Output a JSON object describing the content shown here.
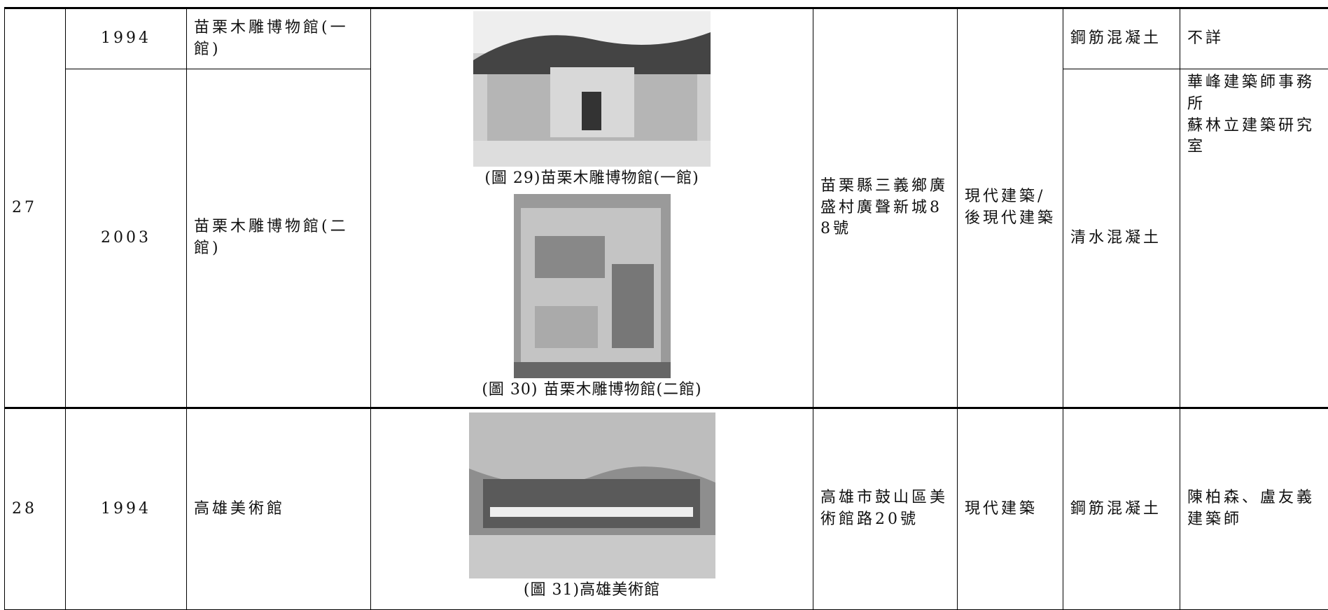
{
  "table": {
    "rows": [
      {
        "number": "27",
        "entries": [
          {
            "year": "1994",
            "name": "苗栗木雕博物館(一館)"
          },
          {
            "year": "2003",
            "name": "苗栗木雕博物館(二館)"
          }
        ],
        "captions": [
          "(圖 29)苗栗木雕博物館(一館)",
          "(圖 30) 苗栗木雕博物館(二館)"
        ],
        "address": "苗栗縣三義鄉廣盛村廣聲新城88號",
        "style": "現代建築/後現代建築",
        "materials": [
          "鋼筋混凝土",
          "清水混凝土"
        ],
        "architects": [
          "不詳",
          "華峰建築師事務所",
          "蘇林立建築研究室"
        ]
      },
      {
        "number": "28",
        "entries": [
          {
            "year": "1994",
            "name": "高雄美術館"
          }
        ],
        "captions": [
          "(圖 31)高雄美術館"
        ],
        "address": "高雄市鼓山區美術館路20號",
        "style": "現代建築",
        "materials": [
          "鋼筋混凝土"
        ],
        "architects": [
          "陳柏森、盧友義建築師"
        ]
      }
    ]
  }
}
